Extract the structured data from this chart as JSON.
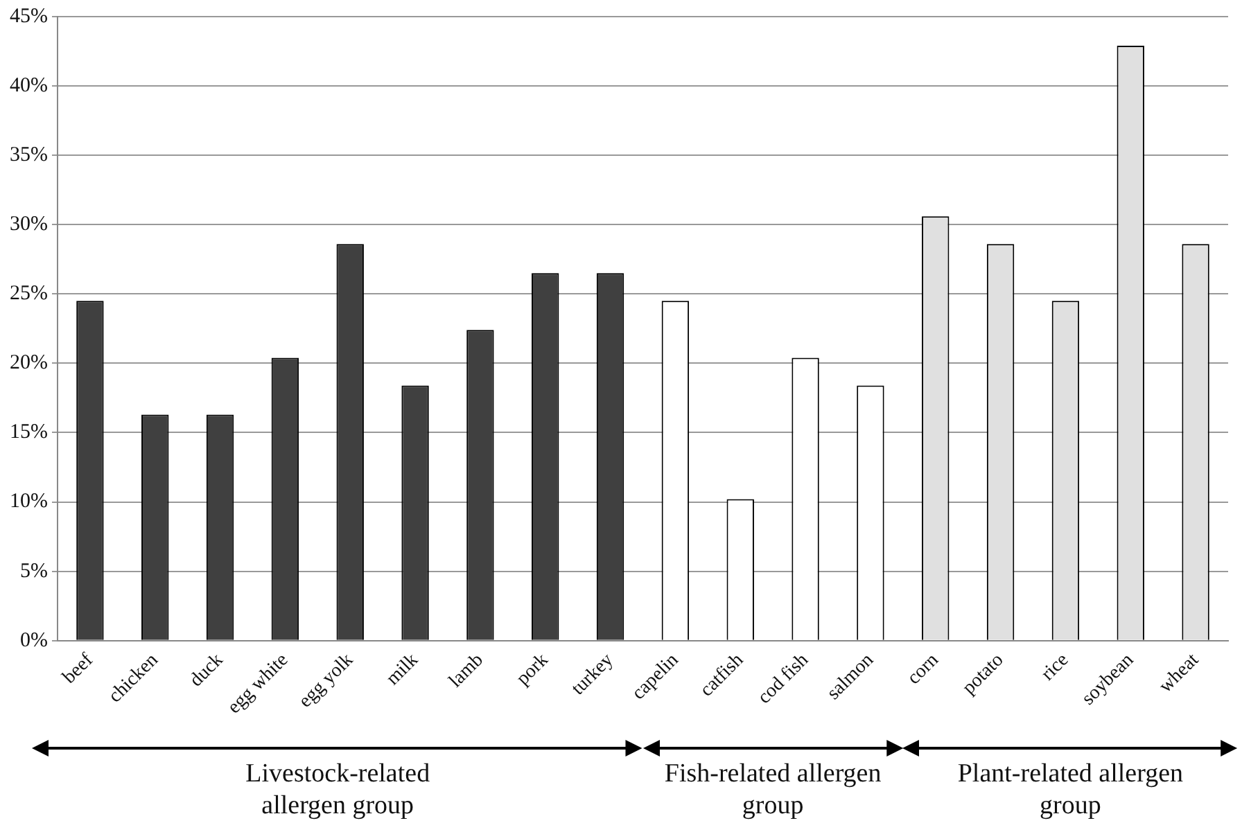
{
  "chart_data": {
    "type": "bar",
    "categories": [
      "beef",
      "chicken",
      "duck",
      "egg white",
      "egg yolk",
      "milk",
      "lamb",
      "pork",
      "turkey",
      "capelin",
      "catfish",
      "cod fish",
      "salmon",
      "corn",
      "potato",
      "rice",
      "soybean",
      "wheat"
    ],
    "values": [
      24.5,
      16.3,
      16.3,
      20.4,
      28.6,
      18.4,
      22.4,
      26.5,
      26.5,
      24.5,
      10.2,
      20.4,
      18.4,
      30.6,
      28.6,
      24.5,
      42.9,
      28.6
    ],
    "colors": [
      "#404040",
      "#404040",
      "#404040",
      "#404040",
      "#404040",
      "#404040",
      "#404040",
      "#404040",
      "#404040",
      "#ffffff",
      "#ffffff",
      "#ffffff",
      "#ffffff",
      "#e0e0e0",
      "#e0e0e0",
      "#e0e0e0",
      "#e0e0e0",
      "#e0e0e0"
    ],
    "ylim": [
      0,
      45
    ],
    "yticks": [
      {
        "value": 0,
        "label": "0%"
      },
      {
        "value": 5,
        "label": "5%"
      },
      {
        "value": 10,
        "label": "10%"
      },
      {
        "value": 15,
        "label": "15%"
      },
      {
        "value": 20,
        "label": "20%"
      },
      {
        "value": 25,
        "label": "25%"
      },
      {
        "value": 30,
        "label": "30%"
      },
      {
        "value": 35,
        "label": "35%"
      },
      {
        "value": 40,
        "label": "40%"
      },
      {
        "value": 45,
        "label": "45%"
      }
    ],
    "grid": "y",
    "annotations": [
      "Livestock-related allergen group",
      "Fish-related allergen group",
      "Plant-related allergen group"
    ]
  }
}
